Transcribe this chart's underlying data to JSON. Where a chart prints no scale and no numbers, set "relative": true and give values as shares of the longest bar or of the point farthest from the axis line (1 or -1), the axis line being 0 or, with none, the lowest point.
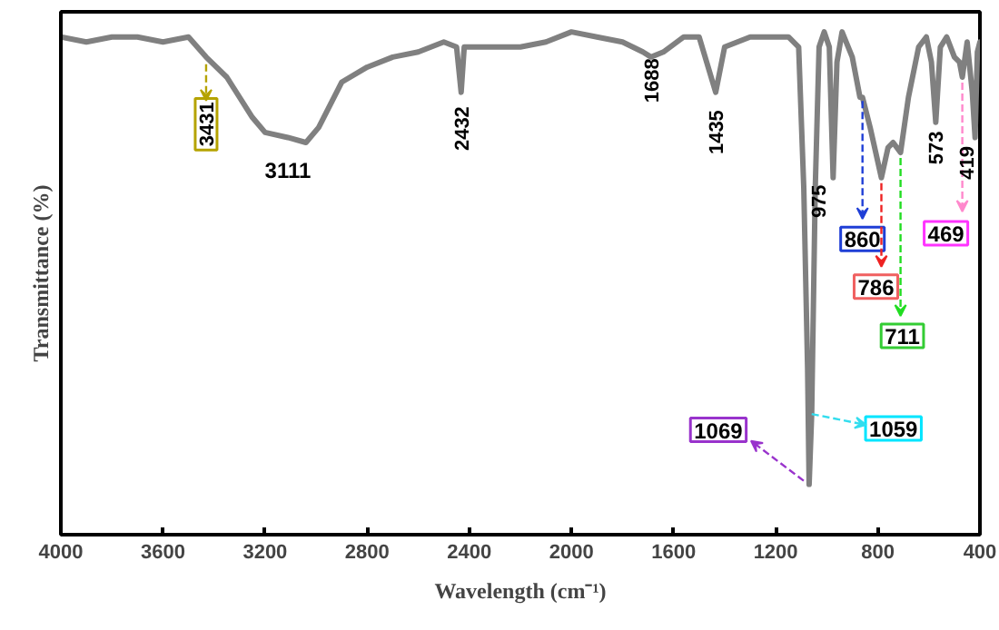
{
  "chart_data": {
    "type": "line",
    "relative": true,
    "xlabel": "Wavelength (cm⁻¹)",
    "ylabel": "Transmittance (%)",
    "xlim": [
      4000,
      400
    ],
    "xticks": [
      4000,
      3600,
      3200,
      2800,
      2400,
      2000,
      1600,
      1200,
      800,
      400
    ],
    "grid": false,
    "marker": "none",
    "line_style": "solid",
    "tick_labels": "x",
    "x": [
      4000,
      3900,
      3800,
      3700,
      3600,
      3500,
      3431,
      3350,
      3250,
      3200,
      3111,
      3040,
      2990,
      2900,
      2800,
      2700,
      2600,
      2500,
      2450,
      2432,
      2420,
      2300,
      2200,
      2100,
      2000,
      1900,
      1800,
      1720,
      1688,
      1640,
      1560,
      1500,
      1435,
      1400,
      1300,
      1150,
      1110,
      1090,
      1075,
      1069,
      1059,
      1045,
      1030,
      1010,
      990,
      975,
      960,
      940,
      900,
      870,
      860,
      830,
      786,
      760,
      740,
      711,
      680,
      640,
      610,
      590,
      573,
      555,
      530,
      500,
      480,
      469,
      450,
      430,
      419,
      410,
      400
    ],
    "series": [
      {
        "color": "#808080",
        "values": [
          0.99,
          0.98,
          0.99,
          0.99,
          0.98,
          0.99,
          0.95,
          0.91,
          0.83,
          0.8,
          0.79,
          0.78,
          0.81,
          0.9,
          0.93,
          0.95,
          0.96,
          0.98,
          0.97,
          0.88,
          0.97,
          0.97,
          0.97,
          0.98,
          1.0,
          0.99,
          0.98,
          0.96,
          0.95,
          0.96,
          0.99,
          0.99,
          0.88,
          0.97,
          0.99,
          0.99,
          0.97,
          0.69,
          0.33,
          0.1,
          0.24,
          0.69,
          0.97,
          1.0,
          0.97,
          0.71,
          0.94,
          1.0,
          0.95,
          0.87,
          0.87,
          0.81,
          0.71,
          0.77,
          0.78,
          0.76,
          0.87,
          0.97,
          0.99,
          0.94,
          0.82,
          0.97,
          0.99,
          0.95,
          0.94,
          0.91,
          0.98,
          0.88,
          0.79,
          0.96,
          0.98
        ]
      }
    ],
    "annotations": [
      {
        "text": "3431",
        "x": 3431,
        "y": 0.95
      },
      {
        "text": "3111",
        "x": 3111,
        "y": 0.79
      },
      {
        "text": "2432",
        "x": 2432,
        "y": 0.88
      },
      {
        "text": "1688",
        "x": 1688,
        "y": 0.95
      },
      {
        "text": "1435",
        "x": 1435,
        "y": 0.88
      },
      {
        "text": "1069",
        "x": 1069,
        "y": 0.1
      },
      {
        "text": "1059",
        "x": 1059,
        "y": 0.24
      },
      {
        "text": "975",
        "x": 975,
        "y": 0.71
      },
      {
        "text": "860",
        "x": 860,
        "y": 0.87
      },
      {
        "text": "786",
        "x": 786,
        "y": 0.71
      },
      {
        "text": "711",
        "x": 711,
        "y": 0.76
      },
      {
        "text": "573",
        "x": 573,
        "y": 0.82
      },
      {
        "text": "469",
        "x": 469,
        "y": 0.91
      },
      {
        "text": "419",
        "x": 419,
        "y": 0.79
      }
    ]
  }
}
